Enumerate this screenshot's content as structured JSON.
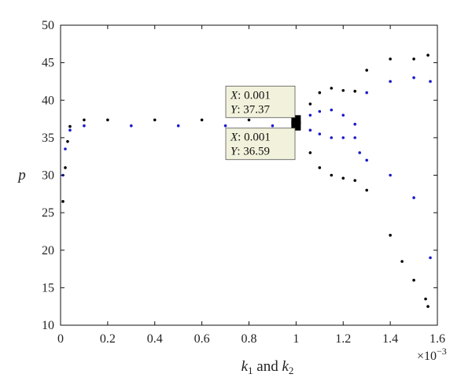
{
  "chart_data": {
    "type": "scatter",
    "title": "",
    "xlabel": {
      "base": "k",
      "sub1": "1",
      "mid": " and ",
      "base2": "k",
      "sub2": "2"
    },
    "ylabel": "p",
    "x_multiplier": {
      "base": "×10",
      "exp": "−3"
    },
    "xlim": [
      0,
      1.6
    ],
    "ylim": [
      10,
      50
    ],
    "xticks": [
      0,
      0.2,
      0.4,
      0.6,
      0.8,
      1,
      1.2,
      1.4,
      1.6
    ],
    "xtick_labels": [
      "0",
      "0.2",
      "0.4",
      "0.6",
      "0.8",
      "1",
      "1.2",
      "1.4",
      "1.6"
    ],
    "yticks": [
      10,
      15,
      20,
      25,
      30,
      35,
      40,
      45,
      50
    ],
    "ytick_labels": [
      "10",
      "15",
      "20",
      "25",
      "30",
      "35",
      "40",
      "45",
      "50"
    ],
    "grid": false,
    "series": [
      {
        "color": "#000000",
        "points": [
          [
            0.01,
            26.5
          ],
          [
            0.02,
            31
          ],
          [
            0.03,
            34.5
          ],
          [
            0.04,
            36.5
          ],
          [
            0.1,
            37.37
          ],
          [
            0.2,
            37.37
          ],
          [
            0.4,
            37.37
          ],
          [
            0.6,
            37.37
          ],
          [
            0.8,
            37.37
          ],
          [
            1.0,
            37.37
          ],
          [
            1.06,
            39.5
          ],
          [
            1.1,
            41
          ],
          [
            1.15,
            41.6
          ],
          [
            1.2,
            41.3
          ],
          [
            1.25,
            41.2
          ],
          [
            1.06,
            33
          ],
          [
            1.1,
            31
          ],
          [
            1.15,
            30
          ],
          [
            1.2,
            29.6
          ],
          [
            1.25,
            29.3
          ],
          [
            1.3,
            44
          ],
          [
            1.4,
            45.5
          ],
          [
            1.5,
            45.5
          ],
          [
            1.56,
            46
          ],
          [
            1.3,
            28
          ],
          [
            1.4,
            22
          ],
          [
            1.45,
            18.5
          ],
          [
            1.5,
            16
          ],
          [
            1.55,
            13.5
          ],
          [
            1.56,
            12.5
          ]
        ]
      },
      {
        "color": "#1a1acc",
        "points": [
          [
            0.01,
            30
          ],
          [
            0.02,
            33.5
          ],
          [
            0.04,
            36
          ],
          [
            0.1,
            36.59
          ],
          [
            0.3,
            36.59
          ],
          [
            0.5,
            36.59
          ],
          [
            0.7,
            36.59
          ],
          [
            0.9,
            36.59
          ],
          [
            1.0,
            36.59
          ],
          [
            1.06,
            38
          ],
          [
            1.1,
            38.5
          ],
          [
            1.15,
            38.7
          ],
          [
            1.2,
            38
          ],
          [
            1.25,
            36.8
          ],
          [
            1.06,
            36
          ],
          [
            1.1,
            35.5
          ],
          [
            1.15,
            35
          ],
          [
            1.2,
            35
          ],
          [
            1.25,
            35
          ],
          [
            1.27,
            33
          ],
          [
            1.3,
            41
          ],
          [
            1.4,
            42.5
          ],
          [
            1.5,
            43
          ],
          [
            1.57,
            42.5
          ],
          [
            1.3,
            32
          ],
          [
            1.4,
            30
          ],
          [
            1.5,
            27
          ],
          [
            1.57,
            19
          ]
        ]
      }
    ],
    "annotations": [
      {
        "x_label": "X",
        "x_value": ": 0.001",
        "y_label": "Y",
        "y_value": ": 37.37",
        "x": 1.0,
        "y": 37.37
      },
      {
        "x_label": "X",
        "x_value": ": 0.001",
        "y_label": "Y",
        "y_value": ": 36.59",
        "x": 1.0,
        "y": 36.59
      }
    ]
  }
}
